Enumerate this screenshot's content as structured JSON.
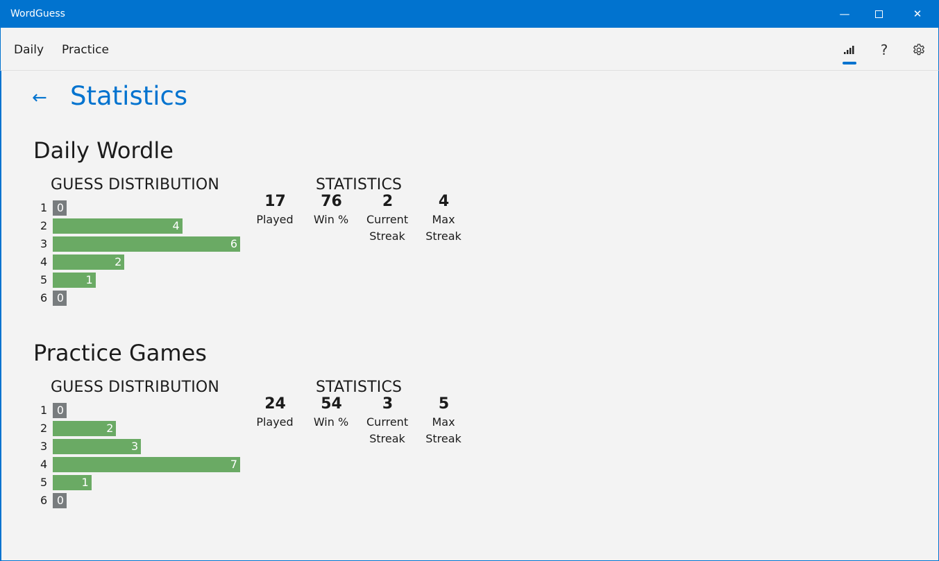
{
  "app": {
    "title": "WordGuess"
  },
  "nav": {
    "items": [
      {
        "label": "Daily"
      },
      {
        "label": "Practice"
      }
    ],
    "icons": [
      "stats-icon",
      "help-icon",
      "settings-icon"
    ],
    "selected": "stats-icon",
    "help_glyph": "?"
  },
  "page": {
    "title": "Statistics"
  },
  "colors": {
    "accent": "#0173cf",
    "bar": "#6aaa64",
    "bar_zero": "#787c7e"
  },
  "sections": [
    {
      "title": "Daily Wordle",
      "dist_header": "GUESS DISTRIBUTION",
      "stats_header": "STATISTICS",
      "distribution": [
        {
          "guess": "1",
          "count": 0
        },
        {
          "guess": "2",
          "count": 4
        },
        {
          "guess": "3",
          "count": 6
        },
        {
          "guess": "4",
          "count": 2
        },
        {
          "guess": "5",
          "count": 1
        },
        {
          "guess": "6",
          "count": 0
        }
      ],
      "stats": [
        {
          "value": "17",
          "label": "Played"
        },
        {
          "value": "76",
          "label": "Win %"
        },
        {
          "value": "2",
          "label": "Current Streak"
        },
        {
          "value": "4",
          "label": "Max Streak"
        }
      ]
    },
    {
      "title": "Practice Games",
      "dist_header": "GUESS DISTRIBUTION",
      "stats_header": "STATISTICS",
      "distribution": [
        {
          "guess": "1",
          "count": 0
        },
        {
          "guess": "2",
          "count": 2
        },
        {
          "guess": "3",
          "count": 3
        },
        {
          "guess": "4",
          "count": 7
        },
        {
          "guess": "5",
          "count": 1
        },
        {
          "guess": "6",
          "count": 0
        }
      ],
      "stats": [
        {
          "value": "24",
          "label": "Played"
        },
        {
          "value": "54",
          "label": "Win %"
        },
        {
          "value": "3",
          "label": "Current Streak"
        },
        {
          "value": "5",
          "label": "Max Streak"
        }
      ]
    }
  ]
}
